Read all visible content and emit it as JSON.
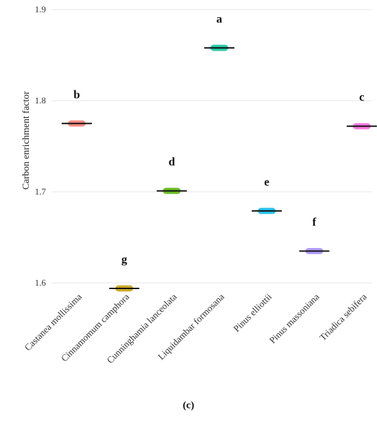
{
  "caption": "(c)",
  "chart_data": {
    "type": "scatter",
    "title": "",
    "xlabel": "",
    "ylabel": "Carbon enrichment factor",
    "ylim": [
      1.58,
      1.9
    ],
    "yticks": [
      "1.6",
      "1.7",
      "1.8",
      "1.9"
    ],
    "grid": "horizontal",
    "categories": [
      "Castanea mollissima",
      "Cinnamomum camphora",
      "Cunninghamia lanceolata",
      "Liquidambar formosana",
      "Pinus elliottii",
      "Pinus massoniana",
      "Triadica sebifera"
    ],
    "values": [
      1.775,
      1.594,
      1.701,
      1.858,
      1.679,
      1.635,
      1.772
    ],
    "letters": [
      "b",
      "g",
      "d",
      "a",
      "e",
      "f",
      "c"
    ],
    "colors": [
      "#F8766D",
      "#C49A00",
      "#53B400",
      "#00C094",
      "#00B6EB",
      "#A58AFF",
      "#FB61D7"
    ]
  }
}
